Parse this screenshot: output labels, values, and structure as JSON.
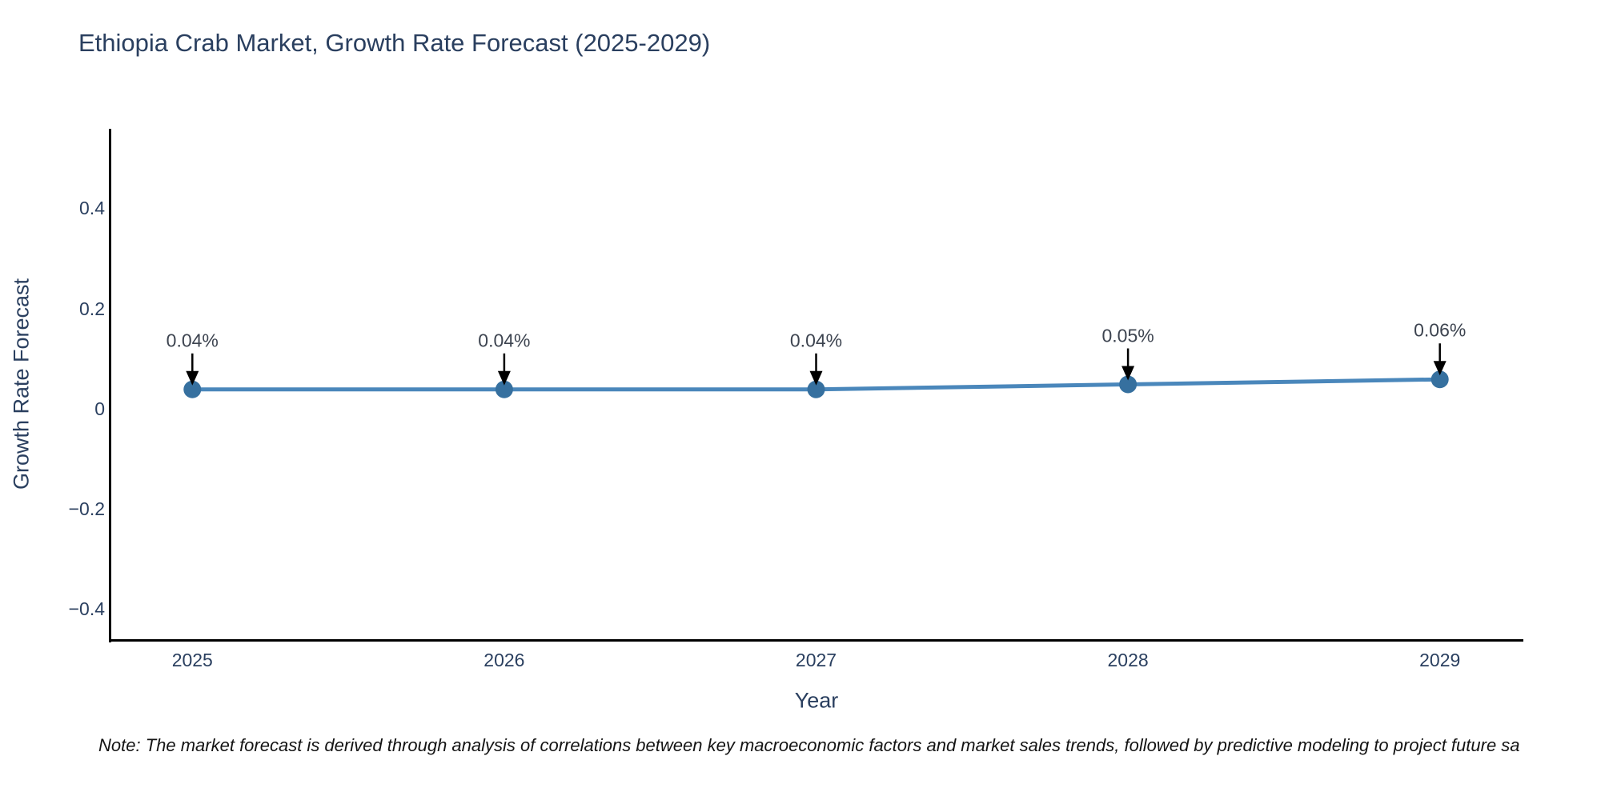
{
  "chart_data": {
    "type": "line",
    "title": "Ethiopia Crab Market, Growth Rate Forecast (2025-2029)",
    "xlabel": "Year",
    "ylabel": "Growth Rate Forecast",
    "x": [
      2025,
      2026,
      2027,
      2028,
      2029
    ],
    "values": [
      0.04,
      0.04,
      0.04,
      0.05,
      0.06
    ],
    "point_labels": [
      "0.04%",
      "0.04%",
      "0.04%",
      "0.05%",
      "0.06%"
    ],
    "x_ticks": [
      {
        "value": 2025,
        "label": "2025"
      },
      {
        "value": 2026,
        "label": "2026"
      },
      {
        "value": 2027,
        "label": "2027"
      },
      {
        "value": 2028,
        "label": "2028"
      },
      {
        "value": 2029,
        "label": "2029"
      }
    ],
    "y_ticks": [
      {
        "value": 0.4,
        "label": "0.4"
      },
      {
        "value": 0.2,
        "label": "0.2"
      },
      {
        "value": 0,
        "label": "0"
      },
      {
        "value": -0.2,
        "label": "−0.2"
      },
      {
        "value": -0.4,
        "label": "−0.4"
      }
    ],
    "xlim": [
      2024.74,
      2029.26
    ],
    "ylim": [
      -0.46,
      0.56
    ],
    "grid": false,
    "legend": false,
    "annotation_arrows": "down",
    "note": "Note: The market forecast is derived through analysis of correlations between key macroeconomic factors and market sales trends, followed by predictive modeling to project future sa",
    "colors": {
      "line": "#4a87bb",
      "marker": "#36709f",
      "arrow": "#000000",
      "axis": "#000000",
      "title_text": "#2a3f5f",
      "tick_text": "#2a3f5f",
      "annotation_text": "#3d4450",
      "note_text": "#141414",
      "background": "#ffffff"
    }
  }
}
